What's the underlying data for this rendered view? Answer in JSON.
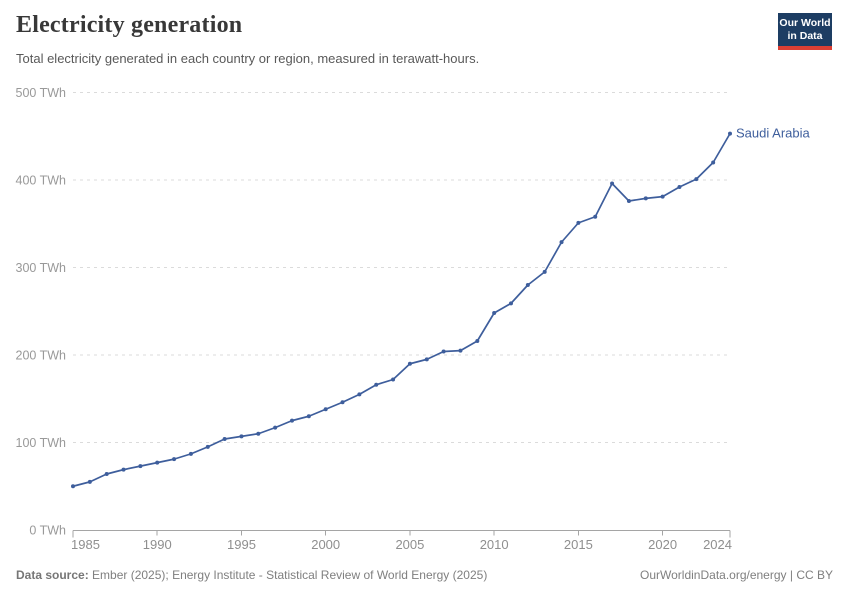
{
  "header": {
    "title": "Electricity generation",
    "subtitle": "Total electricity generated in each country or region, measured in terawatt-hours."
  },
  "logo": {
    "line1": "Our World",
    "line2": "in Data"
  },
  "footer": {
    "source_label": "Data source:",
    "source_text": " Ember (2025); Energy Institute - Statistical Review of World Energy (2025)",
    "rights": "OurWorldinData.org/energy | CC BY"
  },
  "chart_data": {
    "type": "line",
    "title": "Electricity generation",
    "entity": "Saudi Arabia",
    "unit": "TWh",
    "x": [
      1985,
      1986,
      1987,
      1988,
      1989,
      1990,
      1991,
      1992,
      1993,
      1994,
      1995,
      1996,
      1997,
      1998,
      1999,
      2000,
      2001,
      2002,
      2003,
      2004,
      2005,
      2006,
      2007,
      2008,
      2009,
      2010,
      2011,
      2012,
      2013,
      2014,
      2015,
      2016,
      2017,
      2018,
      2019,
      2020,
      2021,
      2022,
      2023,
      2024
    ],
    "values": [
      50,
      55,
      64,
      69,
      73,
      77,
      81,
      87,
      95,
      104,
      107,
      110,
      117,
      125,
      130,
      138,
      146,
      155,
      166,
      172,
      190,
      195,
      204,
      205,
      216,
      248,
      259,
      280,
      295,
      329,
      351,
      358,
      396,
      376,
      379,
      381,
      392,
      401,
      420,
      453
    ],
    "xlabel": "",
    "ylabel": "",
    "xlim": [
      1985,
      2024
    ],
    "ylim": [
      0,
      500
    ],
    "yticks": [
      0,
      100,
      200,
      300,
      400,
      500
    ],
    "xticks": [
      1985,
      1990,
      1995,
      2000,
      2005,
      2010,
      2015,
      2020,
      2024
    ],
    "grid": "horizontal-dashed",
    "legend_position": "line-end-label",
    "line_color": "#3e5e9c",
    "colors": {
      "gridline": "#dbdbdb",
      "axis": "#a5a5a5",
      "axis_text": "#999999",
      "logo_bg": "#1d3d63",
      "logo_red": "#dc3f33"
    }
  }
}
